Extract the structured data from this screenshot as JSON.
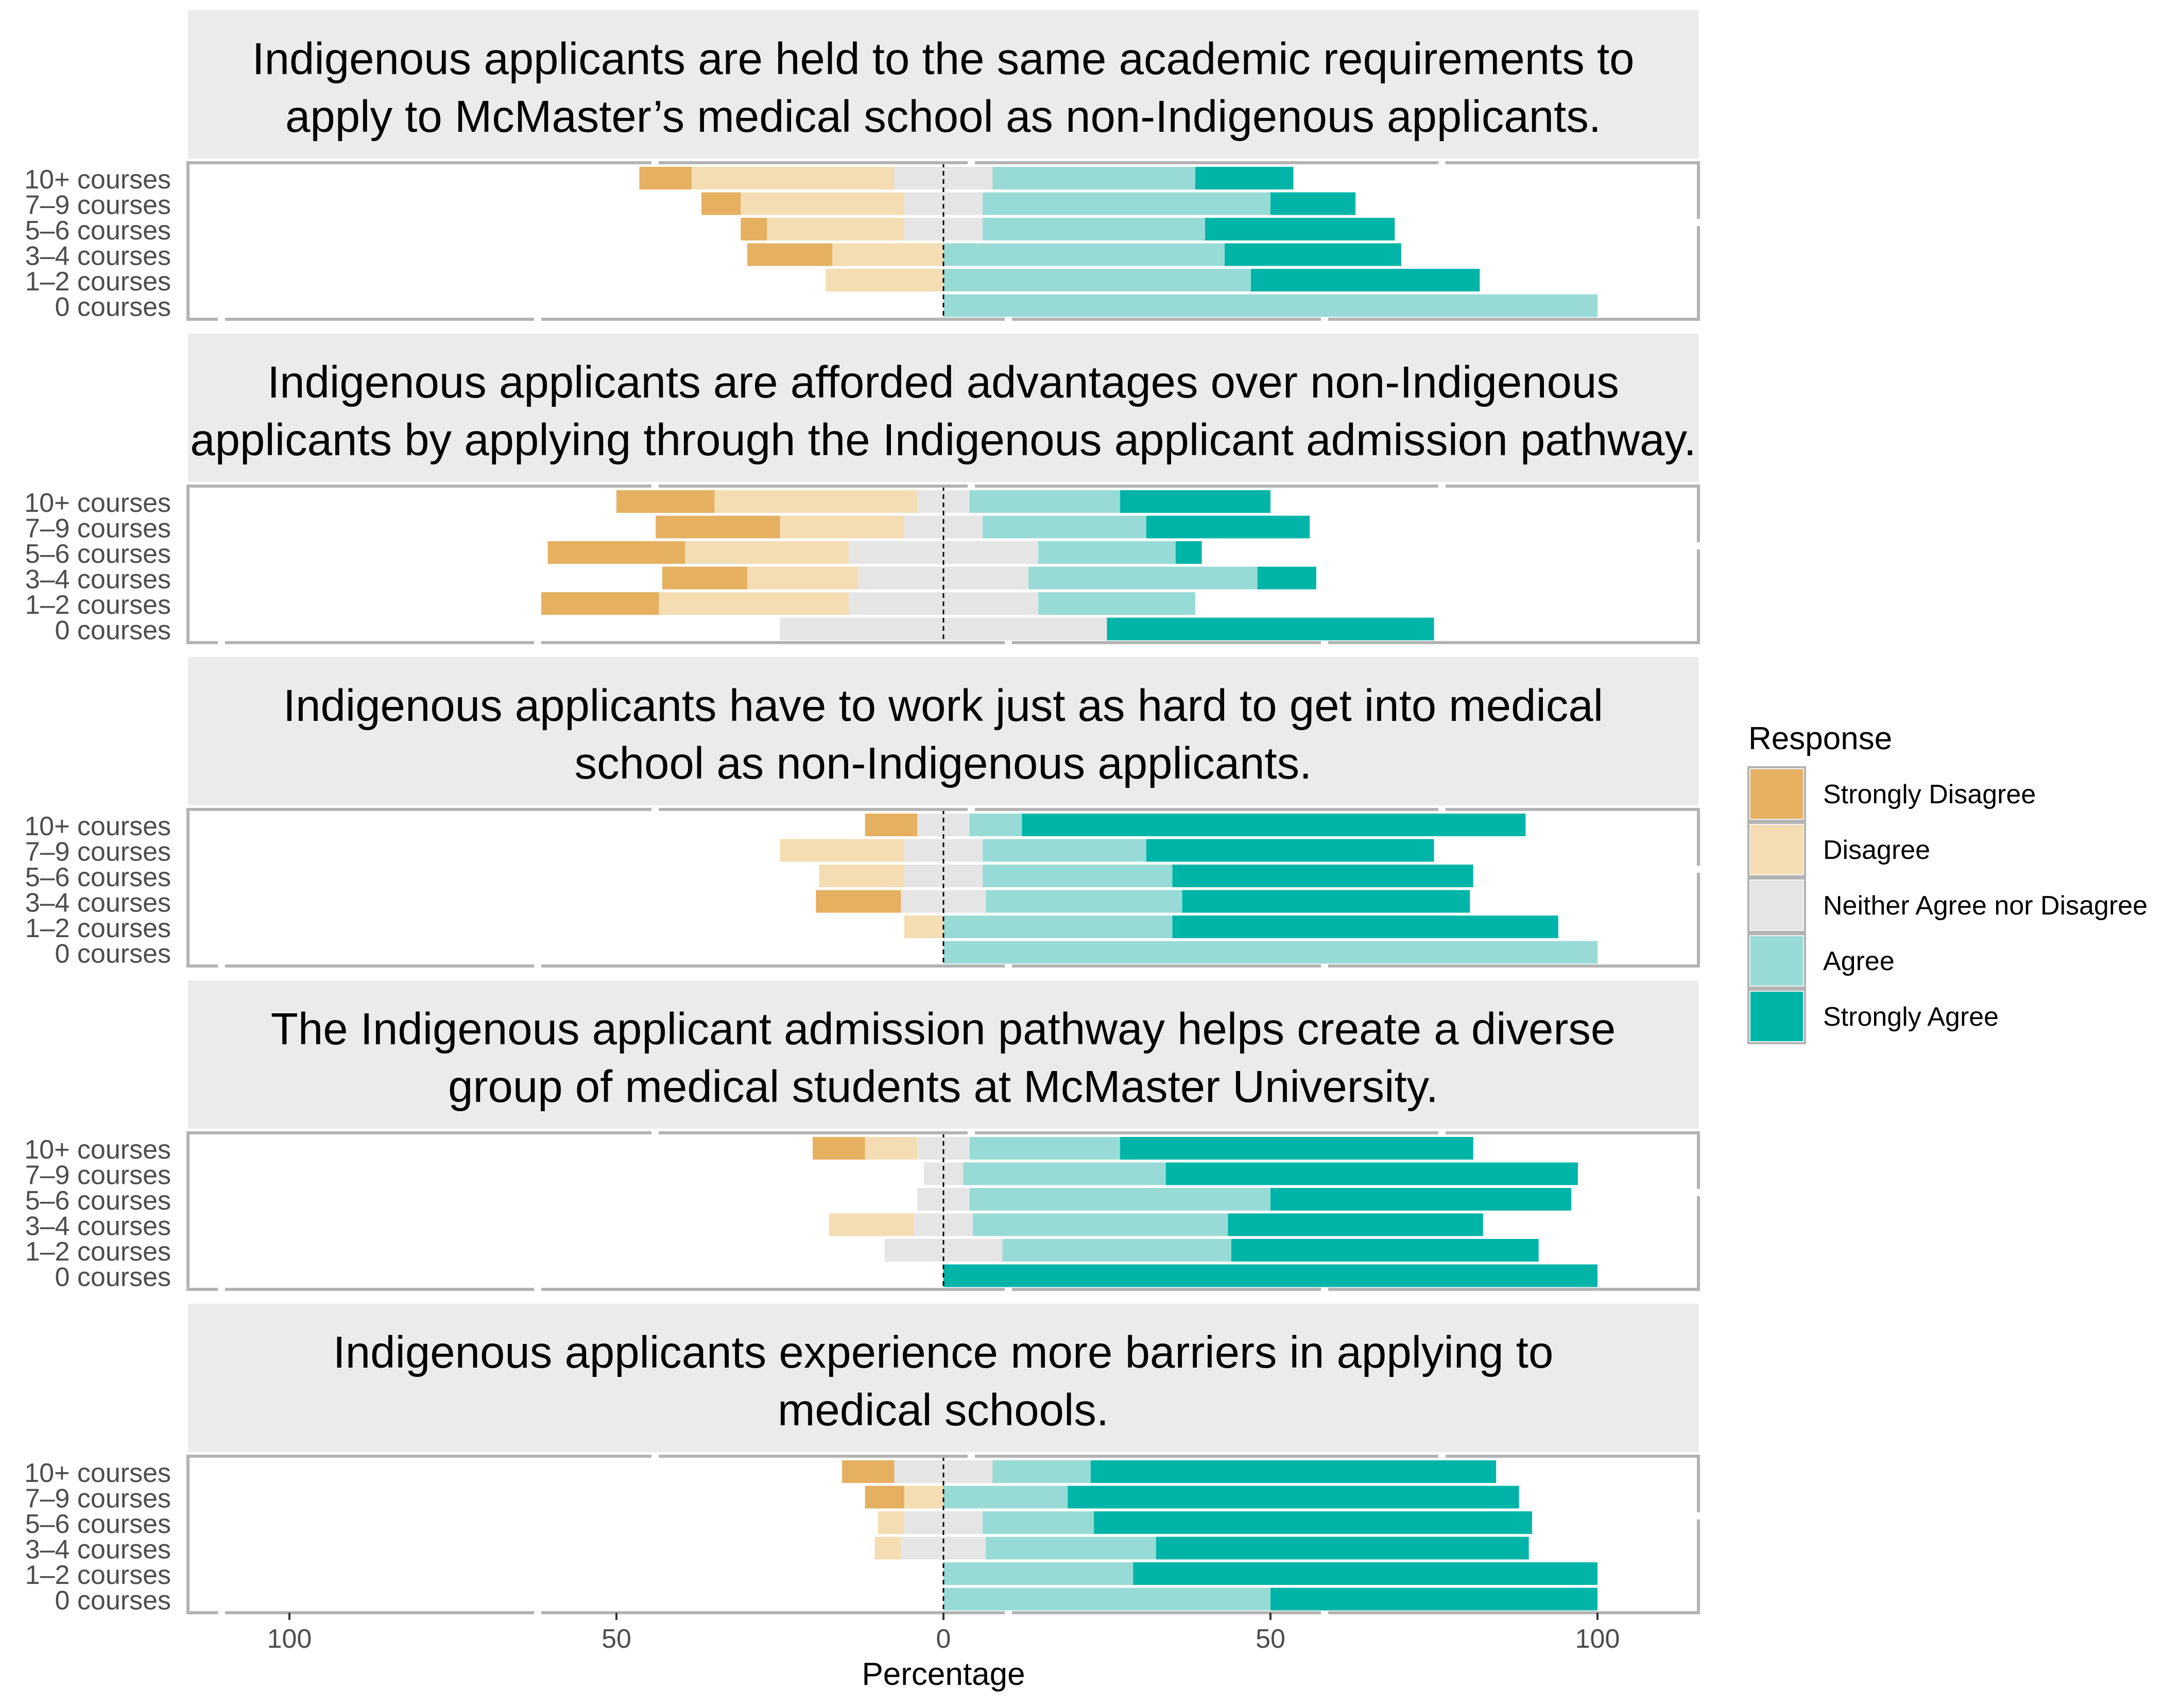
{
  "chart_data": {
    "type": "bar",
    "orientation": "horizontal",
    "stacking": "diverging",
    "xlabel": "Percentage",
    "x_ticks": [
      100,
      50,
      0,
      50,
      100
    ],
    "xlim": [
      -100,
      100
    ],
    "categories": [
      "10+ courses",
      "7–9 courses",
      "5–6 courses",
      "3–4 courses",
      "1–2 courses",
      "0 courses"
    ],
    "legend": {
      "title": "Response",
      "position": "right",
      "entries": [
        "Strongly Disagree",
        "Disagree",
        "Neither Agree nor Disagree",
        "Agree",
        "Strongly Agree"
      ]
    },
    "colors": {
      "Strongly Disagree": "#e6b061",
      "Disagree": "#f4ddb2",
      "Neither Agree nor Disagree": "#e5e5e5",
      "Agree": "#98dbd6",
      "Strongly Agree": "#00b5a8"
    },
    "panels": [
      {
        "title": "Indigenous applicants are held to the same academic requirements to apply to McMaster’s medical school as non-Indigenous applicants.",
        "title_lines": [
          "Indigenous applicants are held to the same academic requirements to",
          "apply to McMaster’s medical school as non-Indigenous applicants."
        ],
        "rows": [
          {
            "category": "10+ courses",
            "values": [
              8,
              31,
              15,
              31,
              15
            ]
          },
          {
            "category": "7–9 courses",
            "values": [
              6,
              25,
              12,
              44,
              13
            ]
          },
          {
            "category": "5–6 courses",
            "values": [
              4,
              21,
              12,
              34,
              29
            ]
          },
          {
            "category": "3–4 courses",
            "values": [
              13,
              17,
              0,
              43,
              27
            ]
          },
          {
            "category": "1–2 courses",
            "values": [
              0,
              18,
              0,
              47,
              35
            ]
          },
          {
            "category": "0 courses",
            "values": [
              0,
              0,
              0,
              100,
              0
            ]
          }
        ]
      },
      {
        "title": "Indigenous applicants are afforded advantages over non-Indigenous applicants by applying through the Indigenous applicant admission pathway.",
        "title_lines": [
          "Indigenous applicants are afforded advantages over non-Indigenous",
          "applicants by applying through the Indigenous applicant admission pathway."
        ],
        "rows": [
          {
            "category": "10+ courses",
            "values": [
              15,
              31,
              8,
              23,
              23
            ]
          },
          {
            "category": "7–9 courses",
            "values": [
              19,
              19,
              12,
              25,
              25
            ]
          },
          {
            "category": "5–6 courses",
            "values": [
              21,
              25,
              29,
              21,
              4
            ]
          },
          {
            "category": "3–4 courses",
            "values": [
              13,
              17,
              26,
              35,
              9
            ]
          },
          {
            "category": "1–2 courses",
            "values": [
              18,
              29,
              29,
              24,
              0
            ]
          },
          {
            "category": "0 courses",
            "values": [
              0,
              0,
              50,
              0,
              50
            ]
          }
        ]
      },
      {
        "title": "Indigenous applicants have to work just as hard to get into medical school as non-Indigenous applicants.",
        "title_lines": [
          "Indigenous applicants have to work just as hard to get into medical",
          "school as non-Indigenous applicants."
        ],
        "rows": [
          {
            "category": "10+ courses",
            "values": [
              8,
              0,
              8,
              8,
              77
            ]
          },
          {
            "category": "7–9 courses",
            "values": [
              0,
              19,
              12,
              25,
              44
            ]
          },
          {
            "category": "5–6 courses",
            "values": [
              0,
              13,
              12,
              29,
              46
            ]
          },
          {
            "category": "3–4 courses",
            "values": [
              13,
              0,
              13,
              30,
              44
            ]
          },
          {
            "category": "1–2 courses",
            "values": [
              0,
              6,
              0,
              35,
              59
            ]
          },
          {
            "category": "0 courses",
            "values": [
              0,
              0,
              0,
              100,
              0
            ]
          }
        ]
      },
      {
        "title": "The Indigenous applicant admission pathway helps create a diverse group of medical students at McMaster University.",
        "title_lines": [
          "The Indigenous applicant admission pathway helps create a diverse",
          "group of medical students at McMaster University."
        ],
        "rows": [
          {
            "category": "10+ courses",
            "values": [
              8,
              8,
              8,
              23,
              54
            ]
          },
          {
            "category": "7–9 courses",
            "values": [
              0,
              0,
              6,
              31,
              63
            ]
          },
          {
            "category": "5–6 courses",
            "values": [
              0,
              0,
              8,
              46,
              46
            ]
          },
          {
            "category": "3–4 courses",
            "values": [
              0,
              13,
              9,
              39,
              39
            ]
          },
          {
            "category": "1–2 courses",
            "values": [
              0,
              0,
              18,
              35,
              47
            ]
          },
          {
            "category": "0 courses",
            "values": [
              0,
              0,
              0,
              0,
              100
            ]
          }
        ]
      },
      {
        "title": "Indigenous applicants experience more barriers in applying to medical schools.",
        "title_lines": [
          "Indigenous applicants experience more barriers in applying to",
          "medical schools."
        ],
        "rows": [
          {
            "category": "10+ courses",
            "values": [
              8,
              0,
              15,
              15,
              62
            ]
          },
          {
            "category": "7–9 courses",
            "values": [
              6,
              6,
              0,
              19,
              69
            ]
          },
          {
            "category": "5–6 courses",
            "values": [
              0,
              4,
              12,
              17,
              67
            ]
          },
          {
            "category": "3–4 courses",
            "values": [
              0,
              4,
              13,
              26,
              57
            ]
          },
          {
            "category": "1–2 courses",
            "values": [
              0,
              0,
              0,
              29,
              71
            ]
          },
          {
            "category": "0 courses",
            "values": [
              0,
              0,
              0,
              50,
              50
            ]
          }
        ]
      }
    ]
  }
}
